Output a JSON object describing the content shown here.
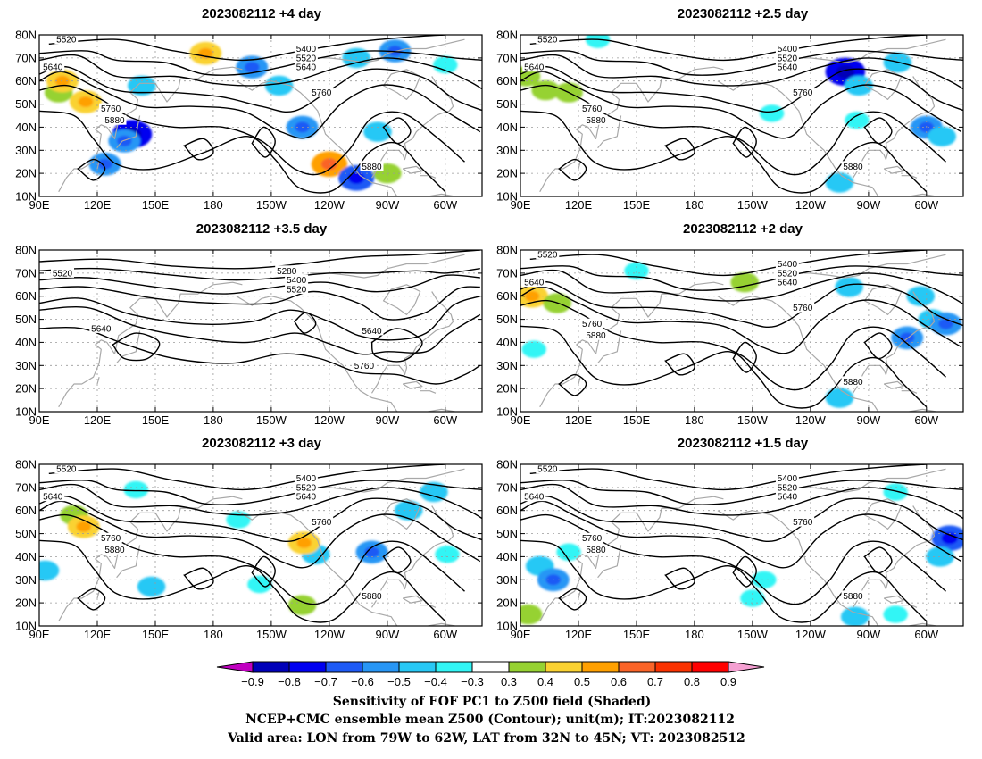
{
  "panels": [
    {
      "title": "2023082112 +4 day",
      "contour_labels": [
        "5520",
        "5640",
        "5400",
        "5520",
        "5640",
        "5760",
        "5760",
        "5880",
        "5880"
      ],
      "shaded": [
        {
          "lon": 100,
          "lat": 55,
          "v": 0.4
        },
        {
          "lon": 102,
          "lat": 60,
          "v": 0.5
        },
        {
          "lon": 114,
          "lat": 51,
          "v": 0.5
        },
        {
          "lon": 138,
          "lat": 37,
          "v": -0.7
        },
        {
          "lon": 134,
          "lat": 34,
          "v": -0.5
        },
        {
          "lon": 143,
          "lat": 58,
          "v": -0.4
        },
        {
          "lon": 124,
          "lat": 24,
          "v": -0.5
        },
        {
          "lon": 176,
          "lat": 72,
          "v": 0.5
        },
        {
          "lon": 200,
          "lat": 66,
          "v": -0.5
        },
        {
          "lon": 214,
          "lat": 58,
          "v": -0.4
        },
        {
          "lon": 226,
          "lat": 40,
          "v": -0.5
        },
        {
          "lon": 240,
          "lat": 24,
          "v": 0.6
        },
        {
          "lon": 254,
          "lat": 18,
          "v": -0.6
        },
        {
          "lon": 265,
          "lat": 38,
          "v": -0.4
        },
        {
          "lon": 254,
          "lat": 70,
          "v": -0.4
        },
        {
          "lon": 274,
          "lat": 73,
          "v": -0.5
        },
        {
          "lon": 300,
          "lat": 67,
          "v": -0.3
        },
        {
          "lon": 270,
          "lat": 20,
          "v": 0.4
        }
      ]
    },
    {
      "title": "2023082112 +2.5 day",
      "contour_labels": [
        "5520",
        "5640",
        "5400",
        "5520",
        "5640",
        "5760",
        "5760",
        "5880",
        "5880"
      ],
      "shaded": [
        {
          "lon": 93,
          "lat": 62,
          "v": 0.4
        },
        {
          "lon": 103,
          "lat": 56,
          "v": 0.4
        },
        {
          "lon": 115,
          "lat": 55,
          "v": 0.4
        },
        {
          "lon": 130,
          "lat": 78,
          "v": -0.3
        },
        {
          "lon": 258,
          "lat": 64,
          "v": -0.7
        },
        {
          "lon": 265,
          "lat": 58,
          "v": -0.4
        },
        {
          "lon": 285,
          "lat": 68,
          "v": -0.4
        },
        {
          "lon": 300,
          "lat": 40,
          "v": -0.5
        },
        {
          "lon": 308,
          "lat": 36,
          "v": -0.4
        },
        {
          "lon": 255,
          "lat": 16,
          "v": -0.4
        },
        {
          "lon": 220,
          "lat": 46,
          "v": -0.3
        },
        {
          "lon": 264,
          "lat": 43,
          "v": -0.3
        }
      ]
    },
    {
      "title": "2023082112 +3.5 day",
      "contour_labels": [
        "5520",
        "5280",
        "5400",
        "5520",
        "5640",
        "5640",
        "5760"
      ],
      "shaded": []
    },
    {
      "title": "2023082112 +2 day",
      "contour_labels": [
        "5520",
        "5640",
        "5400",
        "5520",
        "5640",
        "5760",
        "5760",
        "5880",
        "5880"
      ],
      "shaded": [
        {
          "lon": 96,
          "lat": 60,
          "v": 0.5
        },
        {
          "lon": 109,
          "lat": 57,
          "v": 0.4
        },
        {
          "lon": 150,
          "lat": 71,
          "v": -0.3
        },
        {
          "lon": 206,
          "lat": 66,
          "v": 0.4
        },
        {
          "lon": 260,
          "lat": 64,
          "v": -0.4
        },
        {
          "lon": 290,
          "lat": 42,
          "v": -0.5
        },
        {
          "lon": 303,
          "lat": 50,
          "v": -0.4
        },
        {
          "lon": 297,
          "lat": 60,
          "v": -0.4
        },
        {
          "lon": 255,
          "lat": 16,
          "v": -0.4
        },
        {
          "lon": 97,
          "lat": 37,
          "v": -0.3
        },
        {
          "lon": 310,
          "lat": 48,
          "v": -0.5
        }
      ]
    },
    {
      "title": "2023082112 +3 day",
      "contour_labels": [
        "5520",
        "5640",
        "5400",
        "5520",
        "5640",
        "5760",
        "5760",
        "5880",
        "5880"
      ],
      "shaded": [
        {
          "lon": 108,
          "lat": 58,
          "v": 0.4
        },
        {
          "lon": 113,
          "lat": 53,
          "v": 0.5
        },
        {
          "lon": 93,
          "lat": 34,
          "v": -0.4
        },
        {
          "lon": 148,
          "lat": 27,
          "v": -0.4
        },
        {
          "lon": 140,
          "lat": 69,
          "v": -0.3
        },
        {
          "lon": 193,
          "lat": 56,
          "v": -0.3
        },
        {
          "lon": 233,
          "lat": 41,
          "v": -0.4
        },
        {
          "lon": 227,
          "lat": 46,
          "v": 0.5
        },
        {
          "lon": 262,
          "lat": 42,
          "v": -0.5
        },
        {
          "lon": 281,
          "lat": 60,
          "v": -0.4
        },
        {
          "lon": 294,
          "lat": 68,
          "v": -0.4
        },
        {
          "lon": 301,
          "lat": 41,
          "v": -0.3
        },
        {
          "lon": 226,
          "lat": 19,
          "v": 0.4
        },
        {
          "lon": 204,
          "lat": 28,
          "v": -0.3
        }
      ]
    },
    {
      "title": "2023082112 +1.5 day",
      "contour_labels": [
        "5520",
        "5640",
        "5400",
        "5520",
        "5640",
        "5760",
        "5760",
        "5880",
        "5880"
      ],
      "shaded": [
        {
          "lon": 100,
          "lat": 36,
          "v": -0.4
        },
        {
          "lon": 107,
          "lat": 30,
          "v": -0.5
        },
        {
          "lon": 115,
          "lat": 42,
          "v": -0.3
        },
        {
          "lon": 216,
          "lat": 30,
          "v": -0.3
        },
        {
          "lon": 210,
          "lat": 22,
          "v": -0.3
        },
        {
          "lon": 263,
          "lat": 14,
          "v": -0.4
        },
        {
          "lon": 284,
          "lat": 15,
          "v": -0.3
        },
        {
          "lon": 284,
          "lat": 68,
          "v": -0.3
        },
        {
          "lon": 312,
          "lat": 48,
          "v": -0.6
        },
        {
          "lon": 307,
          "lat": 40,
          "v": -0.4
        },
        {
          "lon": 94,
          "lat": 15,
          "v": 0.4
        }
      ]
    }
  ],
  "lat_ticks": [
    "10N",
    "20N",
    "30N",
    "40N",
    "50N",
    "60N",
    "70N",
    "80N"
  ],
  "lon_ticks": [
    "90E",
    "120E",
    "150E",
    "180",
    "150W",
    "120W",
    "90W",
    "60W"
  ],
  "colorbar": {
    "labels": [
      "−0.9",
      "−0.8",
      "−0.7",
      "−0.6",
      "−0.5",
      "−0.4",
      "−0.3",
      "0.3",
      "0.4",
      "0.5",
      "0.6",
      "0.7",
      "0.8",
      "0.9"
    ],
    "colors": [
      "#c000c0",
      "#0000b8",
      "#0000f0",
      "#1e5af5",
      "#2896f5",
      "#28c8f5",
      "#32f5f5",
      "#ffffff",
      "#96d232",
      "#fad232",
      "#ffa000",
      "#fa6428",
      "#fa3200",
      "#ff0000",
      "#f5a0d2"
    ]
  },
  "footer": {
    "line1": "Sensitivity of EOF PC1 to Z500 field (Shaded)",
    "line2": "NCEP+CMC ensemble mean Z500 (Contour); unit(m); IT:2023082112",
    "line3": "Valid area: LON from 79W to 62W, LAT from 32N to 45N; VT: 2023082512"
  }
}
